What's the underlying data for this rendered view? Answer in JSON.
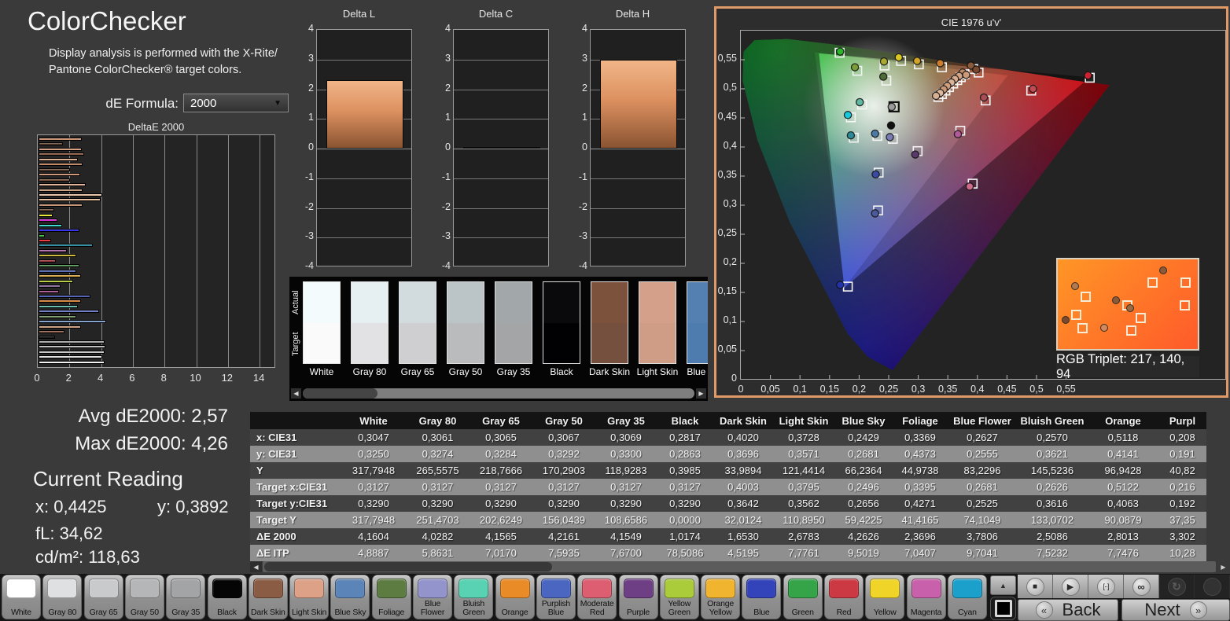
{
  "app": {
    "title": "ColorChecker",
    "description": "Display analysis is performed with the X-Rite/\nPantone ColorChecker® target colors.",
    "de_formula_label": "dE Formula:",
    "de_formula_value": "2000"
  },
  "icons": {
    "dropdown_arrow": "▼",
    "left": "◀",
    "right": "▶",
    "up": "▲",
    "back_chevron": "«",
    "next_chevron": "»"
  },
  "stats": {
    "avg": "Avg dE2000: 2,57",
    "max": "Max dE2000: 4,26",
    "current_reading": "Current Reading",
    "x": "x: 0,4425",
    "y": "y: 0,3892",
    "fl": "fL: 34,62",
    "cdm2": "cd/m²: 118,63"
  },
  "swatch_strip": {
    "actual_label": "Actual",
    "target_label": "Target",
    "items": [
      {
        "name": "White",
        "actual": "#f4fbfd",
        "target": "#fafafa"
      },
      {
        "name": "Gray 80",
        "actual": "#e6eff1",
        "target": "#e2e2e4"
      },
      {
        "name": "Gray 65",
        "actual": "#d2dbdd",
        "target": "#cfcfd1"
      },
      {
        "name": "Gray 50",
        "actual": "#bbc4c6",
        "target": "#b9bbbd"
      },
      {
        "name": "Gray 35",
        "actual": "#a2a7a9",
        "target": "#a3a5a7"
      },
      {
        "name": "Black",
        "actual": "#0a0a0c",
        "target": "#010103"
      },
      {
        "name": "Dark Skin",
        "actual": "#7d523c",
        "target": "#75503e"
      },
      {
        "name": "Light Skin",
        "actual": "#d4a089",
        "target": "#cf9c86"
      },
      {
        "name": "Blue Sky",
        "actual": "#5380b0",
        "target": "#4f7cae"
      }
    ]
  },
  "table": {
    "columns": [
      "White",
      "Gray 80",
      "Gray 65",
      "Gray 50",
      "Gray 35",
      "Black",
      "Dark Skin",
      "Light Skin",
      "Blue Sky",
      "Foliage",
      "Blue Flower",
      "Bluish Green",
      "Orange",
      "Purpl"
    ],
    "rows": [
      {
        "label": "x: CIE31",
        "values": [
          "0,3047",
          "0,3061",
          "0,3065",
          "0,3067",
          "0,3069",
          "0,2817",
          "0,4020",
          "0,3728",
          "0,2429",
          "0,3369",
          "0,2627",
          "0,2570",
          "0,5118",
          "0,208"
        ]
      },
      {
        "label": "y: CIE31",
        "values": [
          "0,3250",
          "0,3274",
          "0,3284",
          "0,3292",
          "0,3300",
          "0,2863",
          "0,3696",
          "0,3571",
          "0,2681",
          "0,4373",
          "0,2555",
          "0,3621",
          "0,4141",
          "0,191"
        ]
      },
      {
        "label": "Y",
        "values": [
          "317,7948",
          "265,5575",
          "218,7666",
          "170,2903",
          "118,9283",
          "0,3985",
          "33,9894",
          "121,4414",
          "66,2364",
          "44,9738",
          "83,2296",
          "145,5236",
          "96,9428",
          "40,82"
        ]
      },
      {
        "label": "Target x:CIE31",
        "values": [
          "0,3127",
          "0,3127",
          "0,3127",
          "0,3127",
          "0,3127",
          "0,3127",
          "0,4003",
          "0,3795",
          "0,2496",
          "0,3395",
          "0,2681",
          "0,2626",
          "0,5122",
          "0,216"
        ]
      },
      {
        "label": "Target y:CIE31",
        "values": [
          "0,3290",
          "0,3290",
          "0,3290",
          "0,3290",
          "0,3290",
          "0,3290",
          "0,3642",
          "0,3562",
          "0,2656",
          "0,4271",
          "0,2525",
          "0,3616",
          "0,4063",
          "0,192"
        ]
      },
      {
        "label": "Target Y",
        "values": [
          "317,7948",
          "251,4703",
          "202,6249",
          "156,0439",
          "108,6586",
          "0,0000",
          "32,0124",
          "110,8950",
          "59,4225",
          "41,4165",
          "74,1049",
          "133,0702",
          "90,0879",
          "37,35"
        ]
      },
      {
        "label": "ΔE 2000",
        "values": [
          "4,1604",
          "4,0282",
          "4,1565",
          "4,2161",
          "4,1549",
          "1,0174",
          "1,6530",
          "2,6783",
          "4,2626",
          "2,3696",
          "3,7806",
          "2,5086",
          "2,8013",
          "3,302"
        ]
      },
      {
        "label": "ΔE ITP",
        "values": [
          "4,8887",
          "5,8631",
          "7,0170",
          "7,5935",
          "7,6700",
          "78,5086",
          "4,5195",
          "7,7761",
          "9,5019",
          "7,0407",
          "9,7041",
          "7,5232",
          "7,7476",
          "10,28"
        ]
      }
    ]
  },
  "patch_buttons": [
    {
      "label": "White",
      "color": "#ffffff"
    },
    {
      "label": "Gray 80",
      "color": "#dfe0e2"
    },
    {
      "label": "Gray 65",
      "color": "#c9cacc"
    },
    {
      "label": "Gray 50",
      "color": "#b5b6b8"
    },
    {
      "label": "Gray 35",
      "color": "#a3a4a6"
    },
    {
      "label": "Black",
      "color": "#050505"
    },
    {
      "label": "Dark Skin",
      "color": "#8a5c44"
    },
    {
      "label": "Light Skin",
      "color": "#dda188"
    },
    {
      "label": "Blue Sky",
      "color": "#5b84b8"
    },
    {
      "label": "Foliage",
      "color": "#5d7c42"
    },
    {
      "label": "Blue\nFlower",
      "color": "#9394cc"
    },
    {
      "label": "Bluish\nGreen",
      "color": "#58d2b2"
    },
    {
      "label": "Orange",
      "color": "#e98c28"
    },
    {
      "label": "Purplish\nBlue",
      "color": "#4a66c0"
    },
    {
      "label": "Moderate\nRed",
      "color": "#dd5e70"
    },
    {
      "label": "Purple",
      "color": "#6e3f85"
    },
    {
      "label": "Yellow\nGreen",
      "color": "#aacb3a"
    },
    {
      "label": "Orange\nYellow",
      "color": "#f0b42e"
    },
    {
      "label": "Blue",
      "color": "#3344bb"
    },
    {
      "label": "Green",
      "color": "#35a449"
    },
    {
      "label": "Red",
      "color": "#cc3942"
    },
    {
      "label": "Yellow",
      "color": "#f0d428"
    },
    {
      "label": "Magenta",
      "color": "#c960ab"
    },
    {
      "label": "Cyan",
      "color": "#1ba0cc"
    }
  ],
  "toolbar": [
    {
      "name": "stop-icon",
      "glyph": "■",
      "disabled": false
    },
    {
      "name": "play-icon",
      "glyph": "▶",
      "disabled": false
    },
    {
      "name": "pattern-window-icon",
      "glyph": "[··]",
      "disabled": false
    },
    {
      "name": "continuous-measure-icon",
      "glyph": "∞",
      "disabled": false
    },
    {
      "name": "refresh-icon",
      "glyph": "↻",
      "disabled": true
    },
    {
      "name": "indicator-icon",
      "glyph": "",
      "disabled": true
    }
  ],
  "nav": {
    "back": "Back",
    "next": "Next"
  },
  "chart_data": [
    {
      "id": "deltae2000",
      "type": "bar",
      "orientation": "horizontal",
      "title": "DeltaE 2000",
      "xlim": [
        0,
        15
      ],
      "xticks": [
        "0",
        "2",
        "4",
        "6",
        "8",
        "10",
        "12",
        "14"
      ],
      "grid": true,
      "bars": [
        {
          "c": "#cf9270",
          "v": 2.75
        },
        {
          "c": "#5f4330",
          "v": 1.55
        },
        {
          "c": "#d29a7a",
          "v": 2.75
        },
        {
          "c": "#8a5a42",
          "v": 2.9
        },
        {
          "c": "#d8a482",
          "v": 2.5
        },
        {
          "c": "#c08560",
          "v": 2.8
        },
        {
          "c": "#6b4a36",
          "v": 2.0
        },
        {
          "c": "#c98e6c",
          "v": 2.65
        },
        {
          "c": "#7a523c",
          "v": 2.0
        },
        {
          "c": "#d9a788",
          "v": 3.0
        },
        {
          "c": "#caa07e",
          "v": 2.8
        },
        {
          "c": "#e8c0a0",
          "v": 4.0
        },
        {
          "c": "#e0b894",
          "v": 3.9
        },
        {
          "c": "#c89272",
          "v": 2.8
        },
        {
          "c": "#6a4632",
          "v": 1.0
        },
        {
          "c": "#e6e62a",
          "v": 0.9
        },
        {
          "c": "#d42ad4",
          "v": 1.2
        },
        {
          "c": "#2ad4c8",
          "v": 1.5
        },
        {
          "c": "#2a2ae8",
          "v": 2.6
        },
        {
          "c": "#2ab42a",
          "v": 0.4
        },
        {
          "c": "#e82a2a",
          "v": 0.8
        },
        {
          "c": "#2a8ca0",
          "v": 3.4
        },
        {
          "c": "#a05a9a",
          "v": 1.8
        },
        {
          "c": "#c8b42a",
          "v": 2.4
        },
        {
          "c": "#a03a3a",
          "v": 1.1
        },
        {
          "c": "#4a8a4a",
          "v": 2.6
        },
        {
          "c": "#5a6ab4",
          "v": 2.4
        },
        {
          "c": "#d4a23a",
          "v": 2.7
        },
        {
          "c": "#b4c83a",
          "v": 2.2
        },
        {
          "c": "#8a6a9a",
          "v": 1.4
        },
        {
          "c": "#a04a8a",
          "v": 1.3
        },
        {
          "c": "#4a5ab4",
          "v": 3.3
        },
        {
          "c": "#d4823a",
          "v": 2.7
        },
        {
          "c": "#5ab4a4",
          "v": 2.5
        },
        {
          "c": "#6a7ac8",
          "v": 3.8
        },
        {
          "c": "#6a8a5a",
          "v": 2.4
        },
        {
          "c": "#7a9ac8",
          "v": 4.26
        },
        {
          "c": "#c89a7a",
          "v": 2.7
        },
        {
          "c": "#8a5a42",
          "v": 1.65
        },
        {
          "c": "#1a1a1a",
          "v": 1.02
        },
        {
          "c": "#a4a4a4",
          "v": 4.15
        },
        {
          "c": "#b6b6b6",
          "v": 4.22
        },
        {
          "c": "#c6c6c6",
          "v": 4.16
        },
        {
          "c": "#dadada",
          "v": 4.03
        },
        {
          "c": "#f2f2f2",
          "v": 4.16
        }
      ]
    },
    {
      "id": "delta_l",
      "type": "bar",
      "title": "Delta L",
      "ylim": [
        -4,
        4
      ],
      "yticks": [
        "4",
        "3",
        "2",
        "1",
        "0",
        "-1",
        "-2",
        "-3",
        "-4"
      ],
      "value": 2.3
    },
    {
      "id": "delta_c",
      "type": "bar",
      "title": "Delta C",
      "ylim": [
        -4,
        4
      ],
      "yticks": [
        "4",
        "3",
        "2",
        "1",
        "0",
        "-1",
        "-2",
        "-3",
        "-4"
      ],
      "value": 0.05
    },
    {
      "id": "delta_h",
      "type": "bar",
      "title": "Delta H",
      "ylim": [
        -4,
        4
      ],
      "yticks": [
        "4",
        "3",
        "2",
        "1",
        "0",
        "-1",
        "-2",
        "-3",
        "-4"
      ],
      "value": 3.0
    },
    {
      "id": "cie_1976",
      "type": "scatter",
      "title": "CIE 1976 u'v'",
      "xlim": [
        0,
        0.62
      ],
      "ylim": [
        0,
        0.6
      ],
      "xticks": [
        "0",
        "0,05",
        "0,1",
        "0,15",
        "0,2",
        "0,25",
        "0,3",
        "0,35",
        "0,4",
        "0,45",
        "0,5",
        "0,55"
      ],
      "yticks": [
        "0",
        "0,05",
        "0,1",
        "0,15",
        "0,2",
        "0,25",
        "0,3",
        "0,35",
        "0,4",
        "0,45",
        "0,5",
        "0,55"
      ],
      "rgb_triplet": "RGB Triplet: 217, 140, 94",
      "gamut_triangle_display": [
        [
          0.59,
          0.52
        ],
        [
          0.132,
          0.561
        ],
        [
          0.175,
          0.158
        ]
      ],
      "gamut_triangle_target": [
        [
          0.451,
          0.523
        ],
        [
          0.125,
          0.563
        ],
        [
          0.175,
          0.158
        ]
      ],
      "targets": [
        [
          0.167,
          0.562
        ],
        [
          0.197,
          0.531
        ],
        [
          0.246,
          0.514
        ],
        [
          0.243,
          0.54
        ],
        [
          0.271,
          0.548
        ],
        [
          0.301,
          0.542
        ],
        [
          0.34,
          0.537
        ],
        [
          0.393,
          0.534
        ],
        [
          0.402,
          0.528
        ],
        [
          0.378,
          0.525
        ],
        [
          0.372,
          0.52
        ],
        [
          0.366,
          0.515
        ],
        [
          0.359,
          0.509
        ],
        [
          0.352,
          0.503
        ],
        [
          0.346,
          0.497
        ],
        [
          0.34,
          0.491
        ],
        [
          0.334,
          0.486
        ],
        [
          0.59,
          0.519
        ],
        [
          0.491,
          0.497
        ],
        [
          0.414,
          0.48
        ],
        [
          0.205,
          0.473
        ],
        [
          0.186,
          0.451
        ],
        [
          0.191,
          0.416
        ],
        [
          0.231,
          0.419
        ],
        [
          0.257,
          0.414
        ],
        [
          0.299,
          0.393
        ],
        [
          0.371,
          0.428
        ],
        [
          0.233,
          0.356
        ],
        [
          0.392,
          0.337
        ],
        [
          0.232,
          0.291
        ],
        [
          0.181,
          0.16
        ]
      ],
      "white_target": [
        0.259,
        0.469
      ],
      "measurements": [
        {
          "u": 0.168,
          "v": 0.564,
          "c": "#2db52d"
        },
        {
          "u": 0.193,
          "v": 0.537,
          "c": "#7a9e35"
        },
        {
          "u": 0.241,
          "v": 0.521,
          "c": "#4e6b3a"
        },
        {
          "u": 0.242,
          "v": 0.547,
          "c": "#a8a832"
        },
        {
          "u": 0.267,
          "v": 0.554,
          "c": "#d8c623"
        },
        {
          "u": 0.298,
          "v": 0.548,
          "c": "#d2a42a"
        },
        {
          "u": 0.337,
          "v": 0.544,
          "c": "#cd7e2e"
        },
        {
          "u": 0.389,
          "v": 0.54,
          "c": "#8a5a3a"
        },
        {
          "u": 0.398,
          "v": 0.533,
          "c": "#7a4a30"
        },
        {
          "u": 0.375,
          "v": 0.528,
          "c": "#c08a66"
        },
        {
          "u": 0.381,
          "v": 0.524,
          "c": "#cc9a78"
        },
        {
          "u": 0.369,
          "v": 0.522,
          "c": "#d4a488"
        },
        {
          "u": 0.362,
          "v": 0.517,
          "c": "#d8ac90"
        },
        {
          "u": 0.356,
          "v": 0.511,
          "c": "#dcb49a"
        },
        {
          "u": 0.349,
          "v": 0.505,
          "c": "#d0a080"
        },
        {
          "u": 0.343,
          "v": 0.499,
          "c": "#c89878"
        },
        {
          "u": 0.337,
          "v": 0.493,
          "c": "#e0b89c"
        },
        {
          "u": 0.33,
          "v": 0.488,
          "c": "#d8b094"
        },
        {
          "u": 0.587,
          "v": 0.523,
          "c": "#cc2231"
        },
        {
          "u": 0.494,
          "v": 0.5,
          "c": "#c24a52"
        },
        {
          "u": 0.411,
          "v": 0.485,
          "c": "#a64d55"
        },
        {
          "u": 0.201,
          "v": 0.477,
          "c": "#5fb8a0"
        },
        {
          "u": 0.255,
          "v": 0.469,
          "c": "#9a9a9a"
        },
        {
          "u": 0.181,
          "v": 0.455,
          "c": "#19c8dc"
        },
        {
          "u": 0.254,
          "v": 0.437,
          "c": "#101010"
        },
        {
          "u": 0.186,
          "v": 0.42,
          "c": "#2e8a96"
        },
        {
          "u": 0.227,
          "v": 0.423,
          "c": "#4a7aa8"
        },
        {
          "u": 0.252,
          "v": 0.417,
          "c": "#7a7ab4"
        },
        {
          "u": 0.295,
          "v": 0.387,
          "c": "#5a3a6a"
        },
        {
          "u": 0.367,
          "v": 0.422,
          "c": "#b05a9a"
        },
        {
          "u": 0.228,
          "v": 0.353,
          "c": "#3a4aa0"
        },
        {
          "u": 0.387,
          "v": 0.332,
          "c": "#d06a8a"
        },
        {
          "u": 0.227,
          "v": 0.286,
          "c": "#4a5a9a"
        },
        {
          "u": 0.168,
          "v": 0.163,
          "c": "#2233aa"
        }
      ],
      "inset": {
        "squares": [
          [
            0.68,
            0.22
          ],
          [
            0.93,
            0.22
          ],
          [
            0.17,
            0.4
          ],
          [
            0.49,
            0.5
          ],
          [
            0.92,
            0.5
          ],
          [
            0.59,
            0.66
          ],
          [
            0.1,
            0.62
          ],
          [
            0.15,
            0.79
          ],
          [
            0.52,
            0.82
          ]
        ],
        "dots": [
          {
            "x": 0.77,
            "y": 0.09,
            "c": "#8a5a3a"
          },
          {
            "x": 0.1,
            "y": 0.28,
            "c": "#b07a52"
          },
          {
            "x": 0.41,
            "y": 0.46,
            "c": "#8a5a3a"
          },
          {
            "x": 0.52,
            "y": 0.55,
            "c": "#9a6a42"
          },
          {
            "x": 0.03,
            "y": 0.7,
            "c": "#7a4a30"
          },
          {
            "x": 0.32,
            "y": 0.8,
            "c": "#d08a62"
          }
        ]
      }
    }
  ]
}
